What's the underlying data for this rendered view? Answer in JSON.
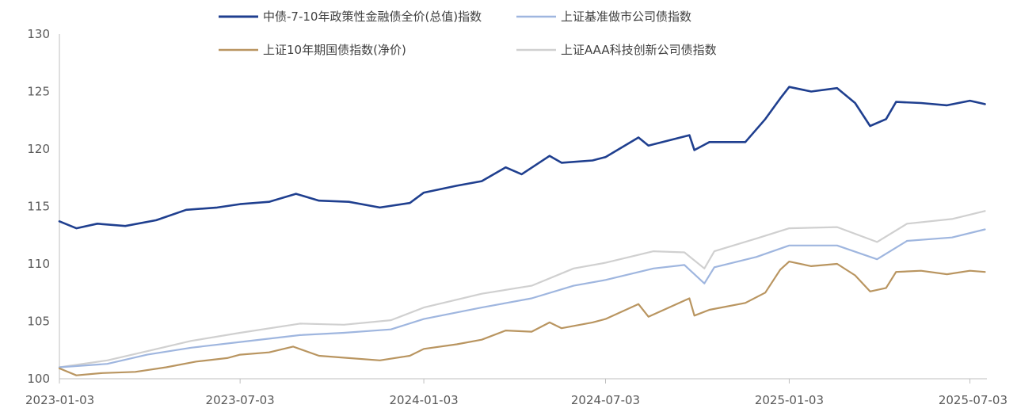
{
  "chart_data": {
    "type": "line",
    "title": "",
    "xlabel": "",
    "ylabel": "",
    "ylim": [
      100,
      130
    ],
    "yticks": [
      100,
      105,
      110,
      115,
      120,
      125,
      130
    ],
    "xlim": [
      "2023-01-03",
      "2025-07-20"
    ],
    "xticks": [
      "2023-01-03",
      "2023-07-03",
      "2024-01-03",
      "2024-07-03",
      "2025-01-03",
      "2025-07-03"
    ],
    "grid": false,
    "legend": "top",
    "series": [
      {
        "name": "中债-7-10年政策性金融债全价(总值)指数",
        "color": "#1f3f8f",
        "points": [
          [
            "2023-01-03",
            113.7
          ],
          [
            "2023-01-20",
            113.1
          ],
          [
            "2023-02-10",
            113.5
          ],
          [
            "2023-03-10",
            113.3
          ],
          [
            "2023-04-10",
            113.8
          ],
          [
            "2023-05-10",
            114.7
          ],
          [
            "2023-06-10",
            114.9
          ],
          [
            "2023-07-03",
            115.2
          ],
          [
            "2023-08-01",
            115.4
          ],
          [
            "2023-08-28",
            116.1
          ],
          [
            "2023-09-20",
            115.5
          ],
          [
            "2023-10-20",
            115.4
          ],
          [
            "2023-11-20",
            114.9
          ],
          [
            "2023-12-20",
            115.3
          ],
          [
            "2024-01-03",
            116.2
          ],
          [
            "2024-02-05",
            116.8
          ],
          [
            "2024-03-01",
            117.2
          ],
          [
            "2024-03-25",
            118.4
          ],
          [
            "2024-04-10",
            117.8
          ],
          [
            "2024-05-08",
            119.4
          ],
          [
            "2024-05-20",
            118.8
          ],
          [
            "2024-06-20",
            119.0
          ],
          [
            "2024-07-03",
            119.3
          ],
          [
            "2024-08-05",
            121.0
          ],
          [
            "2024-08-15",
            120.3
          ],
          [
            "2024-09-25",
            121.2
          ],
          [
            "2024-09-30",
            119.9
          ],
          [
            "2024-10-15",
            120.6
          ],
          [
            "2024-11-20",
            120.6
          ],
          [
            "2024-12-10",
            122.6
          ],
          [
            "2024-12-25",
            124.4
          ],
          [
            "2025-01-03",
            125.4
          ],
          [
            "2025-01-25",
            125.0
          ],
          [
            "2025-02-20",
            125.3
          ],
          [
            "2025-03-10",
            124.0
          ],
          [
            "2025-03-25",
            122.0
          ],
          [
            "2025-04-10",
            122.6
          ],
          [
            "2025-04-20",
            124.1
          ],
          [
            "2025-05-15",
            124.0
          ],
          [
            "2025-06-10",
            123.8
          ],
          [
            "2025-07-03",
            124.2
          ],
          [
            "2025-07-18",
            123.9
          ]
        ]
      },
      {
        "name": "上证基准做市公司债指数",
        "color": "#9fb6df",
        "points": [
          [
            "2023-01-03",
            101.0
          ],
          [
            "2023-02-20",
            101.3
          ],
          [
            "2023-04-01",
            102.1
          ],
          [
            "2023-05-15",
            102.7
          ],
          [
            "2023-07-03",
            103.2
          ],
          [
            "2023-09-01",
            103.8
          ],
          [
            "2023-10-15",
            104.0
          ],
          [
            "2023-12-01",
            104.3
          ],
          [
            "2024-01-03",
            105.2
          ],
          [
            "2024-03-01",
            106.2
          ],
          [
            "2024-04-20",
            107.0
          ],
          [
            "2024-06-01",
            108.1
          ],
          [
            "2024-07-03",
            108.6
          ],
          [
            "2024-08-20",
            109.6
          ],
          [
            "2024-09-20",
            109.9
          ],
          [
            "2024-10-10",
            108.3
          ],
          [
            "2024-10-20",
            109.7
          ],
          [
            "2024-12-01",
            110.6
          ],
          [
            "2025-01-03",
            111.6
          ],
          [
            "2025-02-20",
            111.6
          ],
          [
            "2025-04-01",
            110.4
          ],
          [
            "2025-05-01",
            112.0
          ],
          [
            "2025-06-15",
            112.3
          ],
          [
            "2025-07-18",
            113.0
          ]
        ]
      },
      {
        "name": "上证10年期国债指数(净价)",
        "color": "#b99560",
        "points": [
          [
            "2023-01-03",
            100.9
          ],
          [
            "2023-01-20",
            100.3
          ],
          [
            "2023-02-15",
            100.5
          ],
          [
            "2023-03-20",
            100.6
          ],
          [
            "2023-04-20",
            101.0
          ],
          [
            "2023-05-20",
            101.5
          ],
          [
            "2023-06-20",
            101.8
          ],
          [
            "2023-07-03",
            102.1
          ],
          [
            "2023-08-01",
            102.3
          ],
          [
            "2023-08-25",
            102.8
          ],
          [
            "2023-09-20",
            102.0
          ],
          [
            "2023-10-20",
            101.8
          ],
          [
            "2023-11-20",
            101.6
          ],
          [
            "2023-12-20",
            102.0
          ],
          [
            "2024-01-03",
            102.6
          ],
          [
            "2024-02-05",
            103.0
          ],
          [
            "2024-03-01",
            103.4
          ],
          [
            "2024-03-25",
            104.2
          ],
          [
            "2024-04-20",
            104.1
          ],
          [
            "2024-05-08",
            104.9
          ],
          [
            "2024-05-20",
            104.4
          ],
          [
            "2024-06-20",
            104.9
          ],
          [
            "2024-07-03",
            105.2
          ],
          [
            "2024-08-05",
            106.5
          ],
          [
            "2024-08-15",
            105.4
          ],
          [
            "2024-09-25",
            107.0
          ],
          [
            "2024-09-30",
            105.5
          ],
          [
            "2024-10-15",
            106.0
          ],
          [
            "2024-11-20",
            106.6
          ],
          [
            "2024-12-10",
            107.5
          ],
          [
            "2024-12-25",
            109.5
          ],
          [
            "2025-01-03",
            110.2
          ],
          [
            "2025-01-25",
            109.8
          ],
          [
            "2025-02-20",
            110.0
          ],
          [
            "2025-03-10",
            109.0
          ],
          [
            "2025-03-25",
            107.6
          ],
          [
            "2025-04-10",
            107.9
          ],
          [
            "2025-04-20",
            109.3
          ],
          [
            "2025-05-15",
            109.4
          ],
          [
            "2025-06-10",
            109.1
          ],
          [
            "2025-07-03",
            109.4
          ],
          [
            "2025-07-18",
            109.3
          ]
        ]
      },
      {
        "name": "上证AAA科技创新公司债指数",
        "color": "#d0d0d0",
        "points": [
          [
            "2023-01-03",
            101.0
          ],
          [
            "2023-02-20",
            101.6
          ],
          [
            "2023-04-01",
            102.4
          ],
          [
            "2023-05-15",
            103.3
          ],
          [
            "2023-07-03",
            104.0
          ],
          [
            "2023-09-01",
            104.8
          ],
          [
            "2023-10-15",
            104.7
          ],
          [
            "2023-12-01",
            105.1
          ],
          [
            "2024-01-03",
            106.2
          ],
          [
            "2024-03-01",
            107.4
          ],
          [
            "2024-04-20",
            108.1
          ],
          [
            "2024-06-01",
            109.6
          ],
          [
            "2024-07-03",
            110.1
          ],
          [
            "2024-08-20",
            111.1
          ],
          [
            "2024-09-20",
            111.0
          ],
          [
            "2024-10-10",
            109.6
          ],
          [
            "2024-10-20",
            111.1
          ],
          [
            "2024-12-01",
            112.2
          ],
          [
            "2025-01-03",
            113.1
          ],
          [
            "2025-02-20",
            113.2
          ],
          [
            "2025-04-01",
            111.9
          ],
          [
            "2025-05-01",
            113.5
          ],
          [
            "2025-06-15",
            113.9
          ],
          [
            "2025-07-18",
            114.6
          ]
        ]
      }
    ]
  }
}
